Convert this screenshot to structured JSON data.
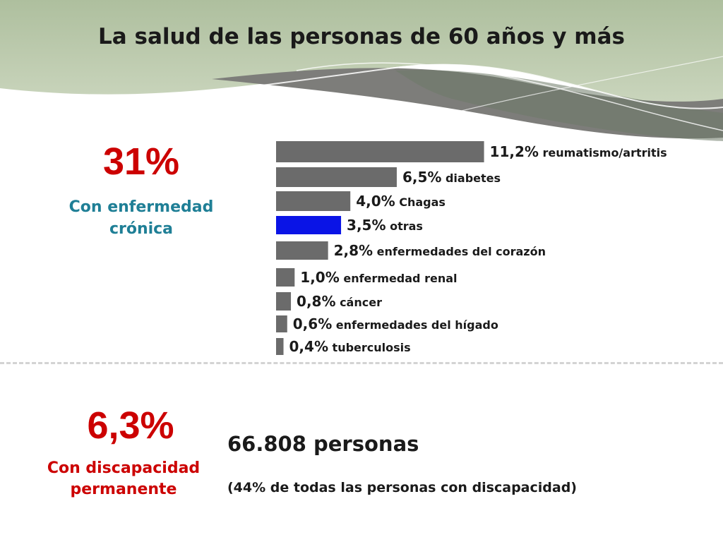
{
  "title": "La salud de las personas de 60 años y más",
  "chronic": {
    "value": "31%",
    "label_line1": "Con enfermedad",
    "label_line2": "crónica",
    "color": "#cc0000",
    "label_color": "#1f7f96"
  },
  "disability": {
    "value": "6,3%",
    "label_line1": "Con discapacidad",
    "label_line2": "permanente",
    "persons": "66.808 personas",
    "note": "(44% de todas las personas con discapacidad)",
    "color": "#cc0000"
  },
  "chart_data": {
    "type": "bar",
    "orientation": "horizontal",
    "categories": [
      "reumatismo/artritis",
      "diabetes",
      "Chagas",
      "otras",
      "enfermedades del corazón",
      "enfermedad renal",
      "cáncer",
      "enfermedades del hígado",
      "tuberculosis"
    ],
    "values": [
      11.2,
      6.5,
      4.0,
      3.5,
      2.8,
      1.0,
      0.8,
      0.6,
      0.4
    ],
    "value_labels": [
      "11,2%",
      "6,5%",
      "4,0%",
      "3,5%",
      "2,8%",
      "1,0%",
      "0,8%",
      "0,6%",
      "0,4%"
    ],
    "colors": [
      "#6b6b6b",
      "#6b6b6b",
      "#6b6b6b",
      "#0a14e6",
      "#6b6b6b",
      "#6b6b6b",
      "#6b6b6b",
      "#6b6b6b",
      "#6b6b6b"
    ],
    "axes_visible": false,
    "grid": false,
    "legend": "none"
  }
}
